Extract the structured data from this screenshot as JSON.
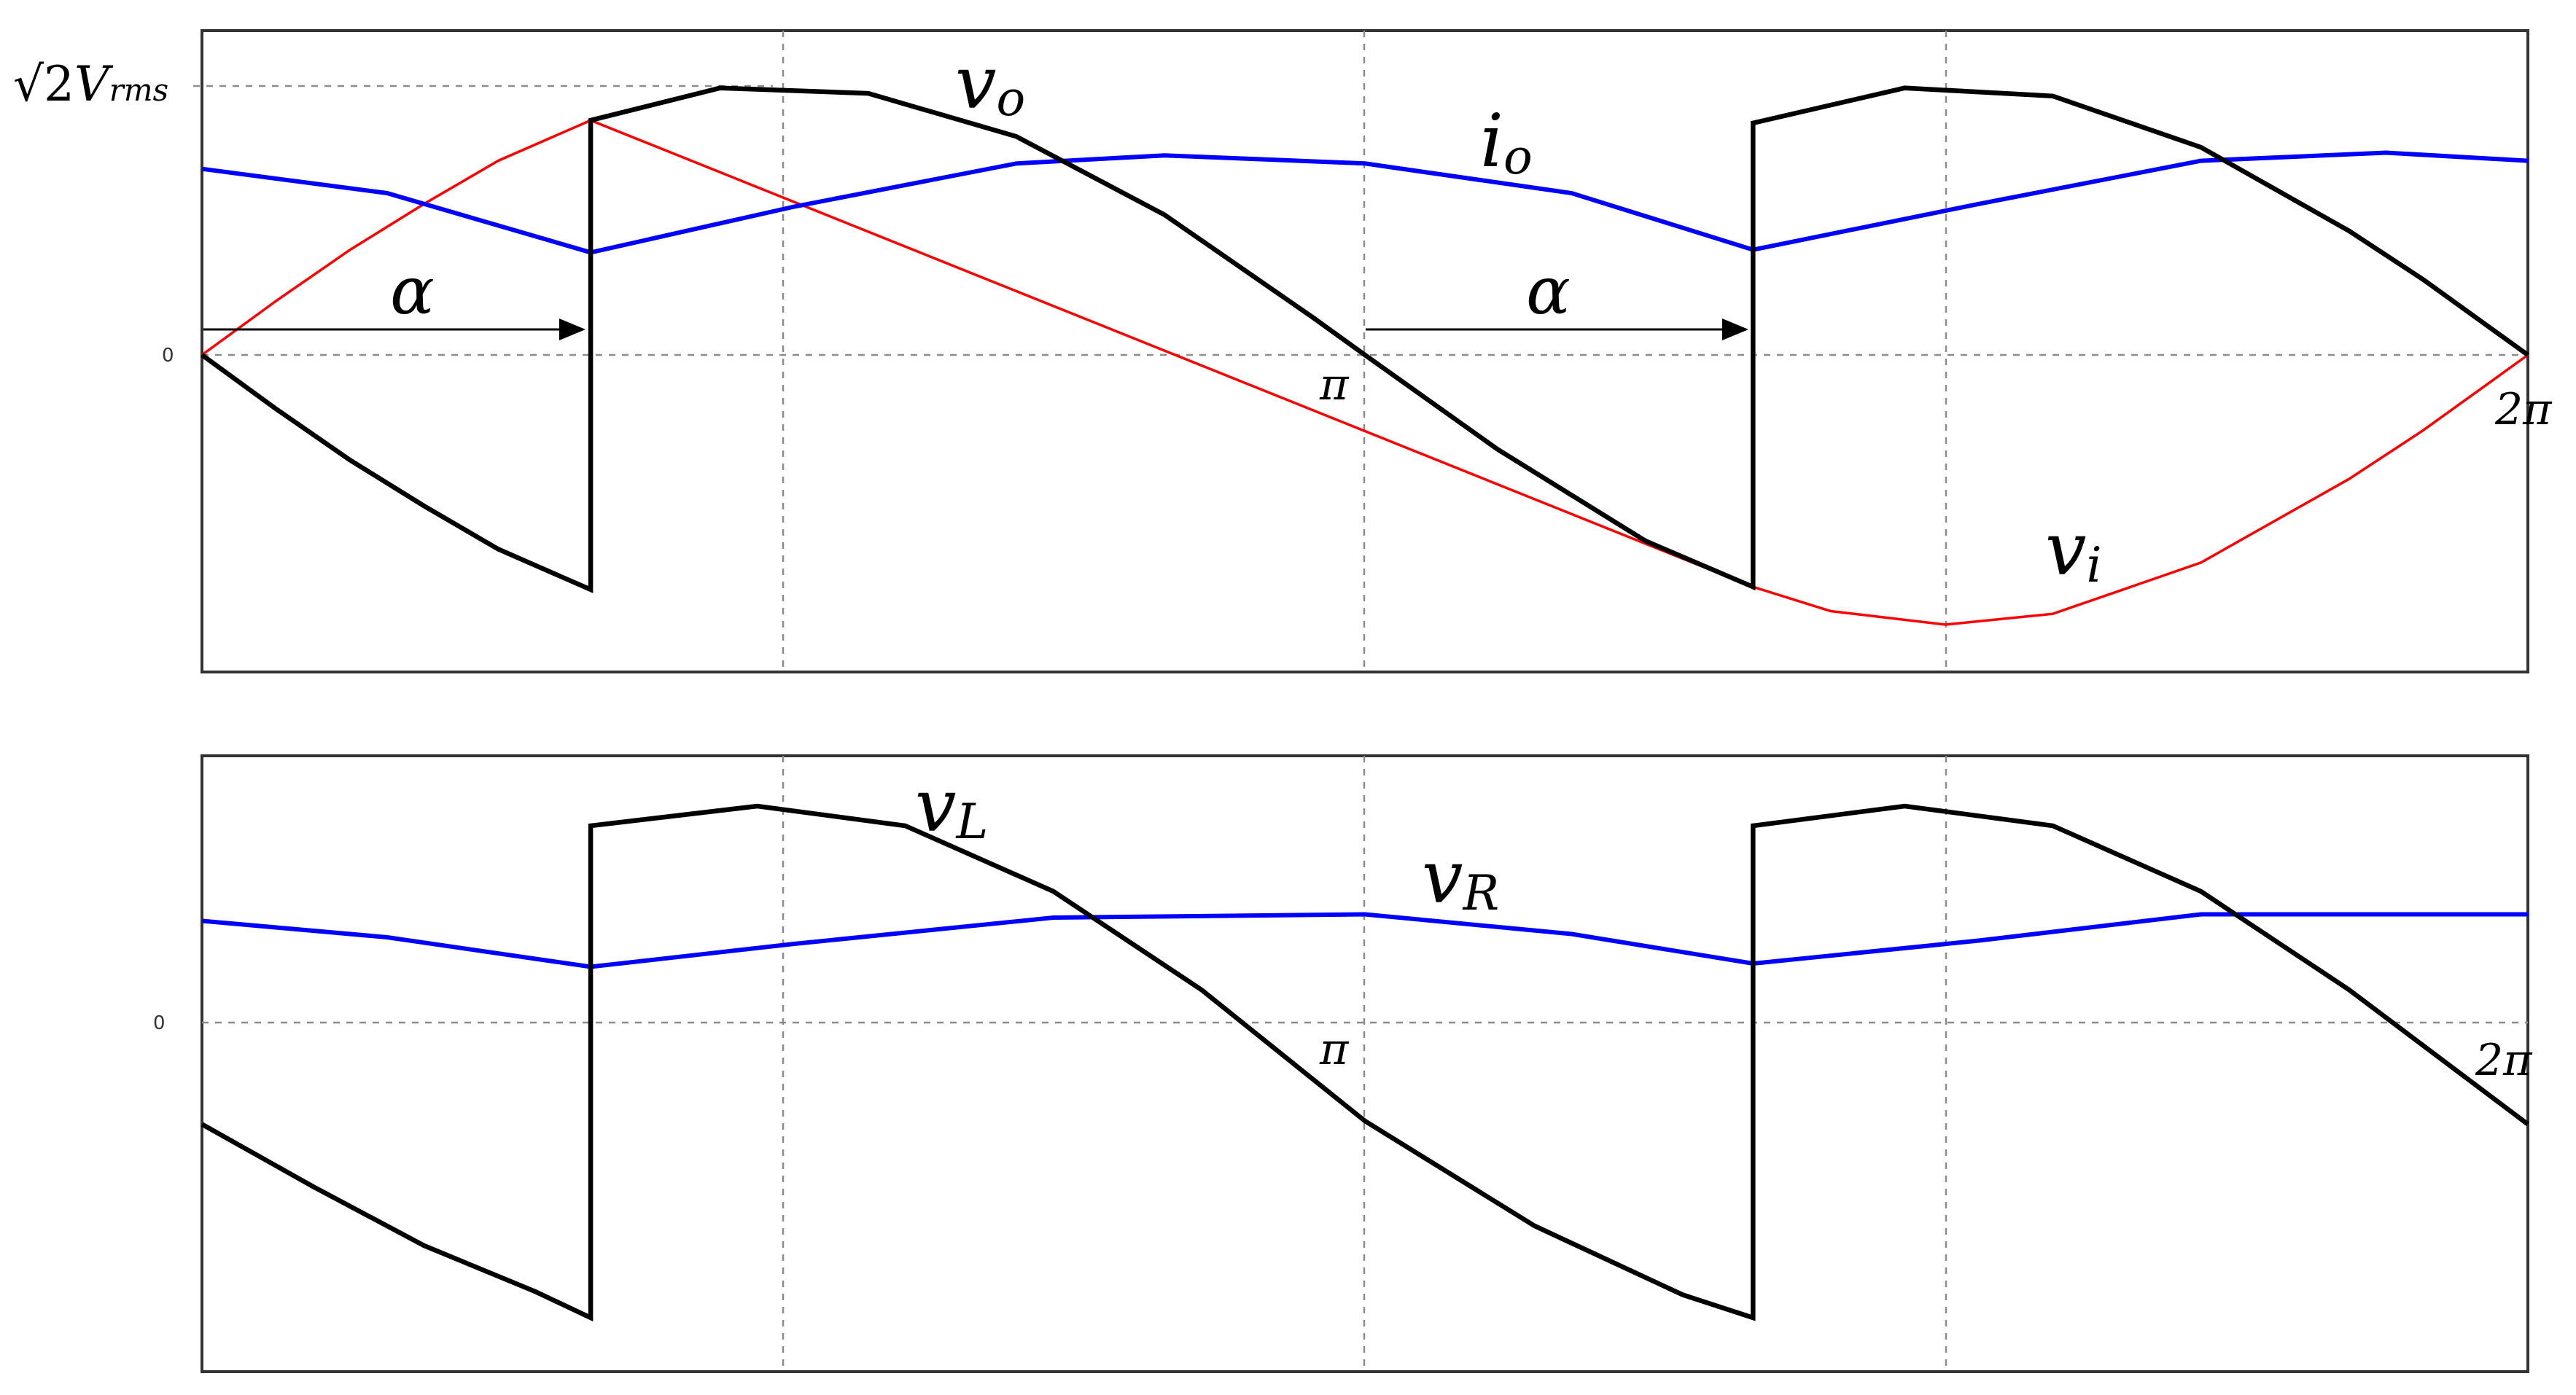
{
  "chart_data": [
    {
      "type": "line",
      "panel": "top",
      "x_ticks": [
        "π",
        "2π"
      ],
      "y_ticks": [
        "0"
      ],
      "reference_label": {
        "radical": "√2",
        "symbol": "V",
        "subscript": "rms"
      },
      "annotations": [
        {
          "text": "α",
          "from": 0,
          "to": 1.05
        },
        {
          "text": "α",
          "from": 3.14159,
          "to": 4.19
        }
      ],
      "series": [
        {
          "name": "vo",
          "symbol": "v",
          "subscript": "o",
          "color": "#000000",
          "x": [
            0,
            0.2,
            0.4,
            0.6,
            0.8,
            1.0,
            1.05,
            1.05,
            1.4,
            1.8,
            2.2,
            2.6,
            3.0,
            3.14159,
            3.5,
            3.9,
            4.19,
            4.19,
            4.6,
            5.0,
            5.4,
            5.8,
            6.0,
            6.28318
          ],
          "y": [
            0,
            -0.2,
            -0.39,
            -0.56,
            -0.72,
            -0.84,
            -0.87,
            0.87,
            0.99,
            0.97,
            0.81,
            0.52,
            0.14,
            0,
            -0.35,
            -0.69,
            -0.86,
            0.86,
            0.99,
            0.96,
            0.77,
            0.46,
            0.28,
            0
          ]
        },
        {
          "name": "vi",
          "symbol": "v",
          "subscript": "i",
          "color": "#ff0000",
          "x": [
            0,
            0.2,
            0.4,
            0.6,
            0.8,
            1.05,
            4.19,
            4.4,
            4.71,
            5.0,
            5.4,
            5.8,
            6.0,
            6.28318
          ],
          "y": [
            0,
            0.2,
            0.39,
            0.56,
            0.72,
            0.87,
            -0.86,
            -0.95,
            -1.0,
            -0.96,
            -0.77,
            -0.46,
            -0.28,
            0
          ]
        },
        {
          "name": "io",
          "symbol": "i",
          "subscript": "o",
          "color": "#0000ff",
          "x": [
            0,
            0.5,
            1.05,
            1.6,
            2.2,
            2.6,
            3.14159,
            3.7,
            4.19,
            4.8,
            5.4,
            5.9,
            6.28318
          ],
          "y": [
            0.69,
            0.6,
            0.38,
            0.55,
            0.71,
            0.74,
            0.71,
            0.6,
            0.39,
            0.56,
            0.72,
            0.75,
            0.72
          ]
        }
      ]
    },
    {
      "type": "line",
      "panel": "bottom",
      "x_ticks": [
        "π",
        "2π"
      ],
      "y_ticks": [
        "0"
      ],
      "series": [
        {
          "name": "vL",
          "symbol": "v",
          "subscript": "L",
          "color": "#000000",
          "x": [
            0,
            0.3,
            0.6,
            0.9,
            1.05,
            1.05,
            1.5,
            1.9,
            2.3,
            2.7,
            3.14159,
            3.6,
            4.0,
            4.19,
            4.19,
            4.6,
            5.0,
            5.4,
            5.8,
            6.28318
          ],
          "y": [
            -0.31,
            -0.5,
            -0.68,
            -0.82,
            -0.9,
            0.6,
            0.66,
            0.6,
            0.4,
            0.1,
            -0.3,
            -0.62,
            -0.83,
            -0.9,
            0.6,
            0.66,
            0.6,
            0.4,
            0.1,
            -0.31
          ]
        },
        {
          "name": "vR",
          "symbol": "v",
          "subscript": "R",
          "color": "#0000ff",
          "x": [
            0,
            0.5,
            1.05,
            1.6,
            2.3,
            3.14159,
            3.7,
            4.19,
            4.8,
            5.4,
            6.28318
          ],
          "y": [
            0.31,
            0.26,
            0.17,
            0.24,
            0.32,
            0.33,
            0.27,
            0.18,
            0.25,
            0.33,
            0.33
          ]
        }
      ]
    }
  ]
}
